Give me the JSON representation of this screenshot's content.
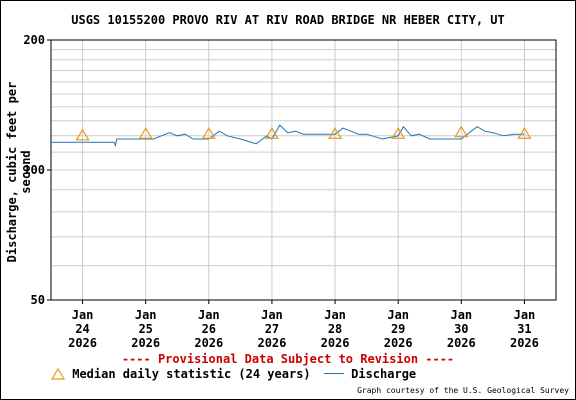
{
  "chart_data": {
    "type": "line",
    "title": "USGS 10155200 PROVO RIV AT RIV ROAD BRIDGE NR HEBER CITY, UT",
    "ylabel": "Discharge, cubic feet per second",
    "ylim": [
      50,
      200
    ],
    "y_scale": "log",
    "y_ticks": [
      "50",
      "100",
      "200"
    ],
    "xlim": [
      "2026-01-23T12:00",
      "2026-01-31T12:00"
    ],
    "x_ticks": [
      {
        "month": "Jan",
        "day": "24",
        "year": "2026"
      },
      {
        "month": "Jan",
        "day": "25",
        "year": "2026"
      },
      {
        "month": "Jan",
        "day": "26",
        "year": "2026"
      },
      {
        "month": "Jan",
        "day": "27",
        "year": "2026"
      },
      {
        "month": "Jan",
        "day": "28",
        "year": "2026"
      },
      {
        "month": "Jan",
        "day": "29",
        "year": "2026"
      },
      {
        "month": "Jan",
        "day": "30",
        "year": "2026"
      },
      {
        "month": "Jan",
        "day": "31",
        "year": "2026"
      }
    ],
    "grid": true,
    "series": [
      {
        "name": "Discharge",
        "color": "#1f77b4",
        "style": "line",
        "x": [
          "2026-01-23T12:00",
          "2026-01-24T06:00",
          "2026-01-24T12:00",
          "2026-01-24T12:30",
          "2026-01-24T13:00",
          "2026-01-25T00:00",
          "2026-01-25T03:00",
          "2026-01-25T06:00",
          "2026-01-25T09:00",
          "2026-01-25T12:00",
          "2026-01-25T15:00",
          "2026-01-25T18:00",
          "2026-01-26T00:00",
          "2026-01-26T04:00",
          "2026-01-26T07:00",
          "2026-01-26T12:00",
          "2026-01-26T18:00",
          "2026-01-26T22:00",
          "2026-01-27T00:00",
          "2026-01-27T03:00",
          "2026-01-27T06:00",
          "2026-01-27T09:00",
          "2026-01-27T12:00",
          "2026-01-27T18:00",
          "2026-01-28T00:00",
          "2026-01-28T03:00",
          "2026-01-28T06:00",
          "2026-01-28T09:00",
          "2026-01-28T12:00",
          "2026-01-28T18:00",
          "2026-01-29T00:00",
          "2026-01-29T02:00",
          "2026-01-29T05:00",
          "2026-01-29T08:00",
          "2026-01-29T12:00",
          "2026-01-29T18:00",
          "2026-01-30T00:00",
          "2026-01-30T03:00",
          "2026-01-30T06:00",
          "2026-01-30T09:00",
          "2026-01-30T12:00",
          "2026-01-30T16:00",
          "2026-01-30T20:00",
          "2026-01-31T00:00"
        ],
        "values": [
          116,
          116,
          116,
          114,
          118,
          118,
          118,
          120,
          122,
          120,
          121,
          118,
          118,
          123,
          120,
          118,
          115,
          120,
          118,
          127,
          122,
          123,
          121,
          121,
          121,
          125,
          123,
          121,
          121,
          118,
          120,
          126,
          120,
          121,
          118,
          118,
          118,
          122,
          126,
          123,
          122,
          120,
          121,
          121
        ]
      },
      {
        "name": "Median daily statistic (24 years)",
        "color": "#e69a1a",
        "style": "triangle-marker",
        "x": [
          "2026-01-24",
          "2026-01-25",
          "2026-01-26",
          "2026-01-27",
          "2026-01-28",
          "2026-01-29",
          "2026-01-30",
          "2026-01-31"
        ],
        "values": [
          120,
          121,
          121,
          121,
          121,
          121,
          122,
          121
        ]
      }
    ]
  },
  "provisional_note": "---- Provisional Data Subject to Revision ----",
  "credit": "Graph courtesy of the U.S. Geological Survey",
  "colors": {
    "provisional": "#cc0000",
    "grid": "#cccccc",
    "discharge": "#1f77b4",
    "median": "#e69a1a"
  }
}
